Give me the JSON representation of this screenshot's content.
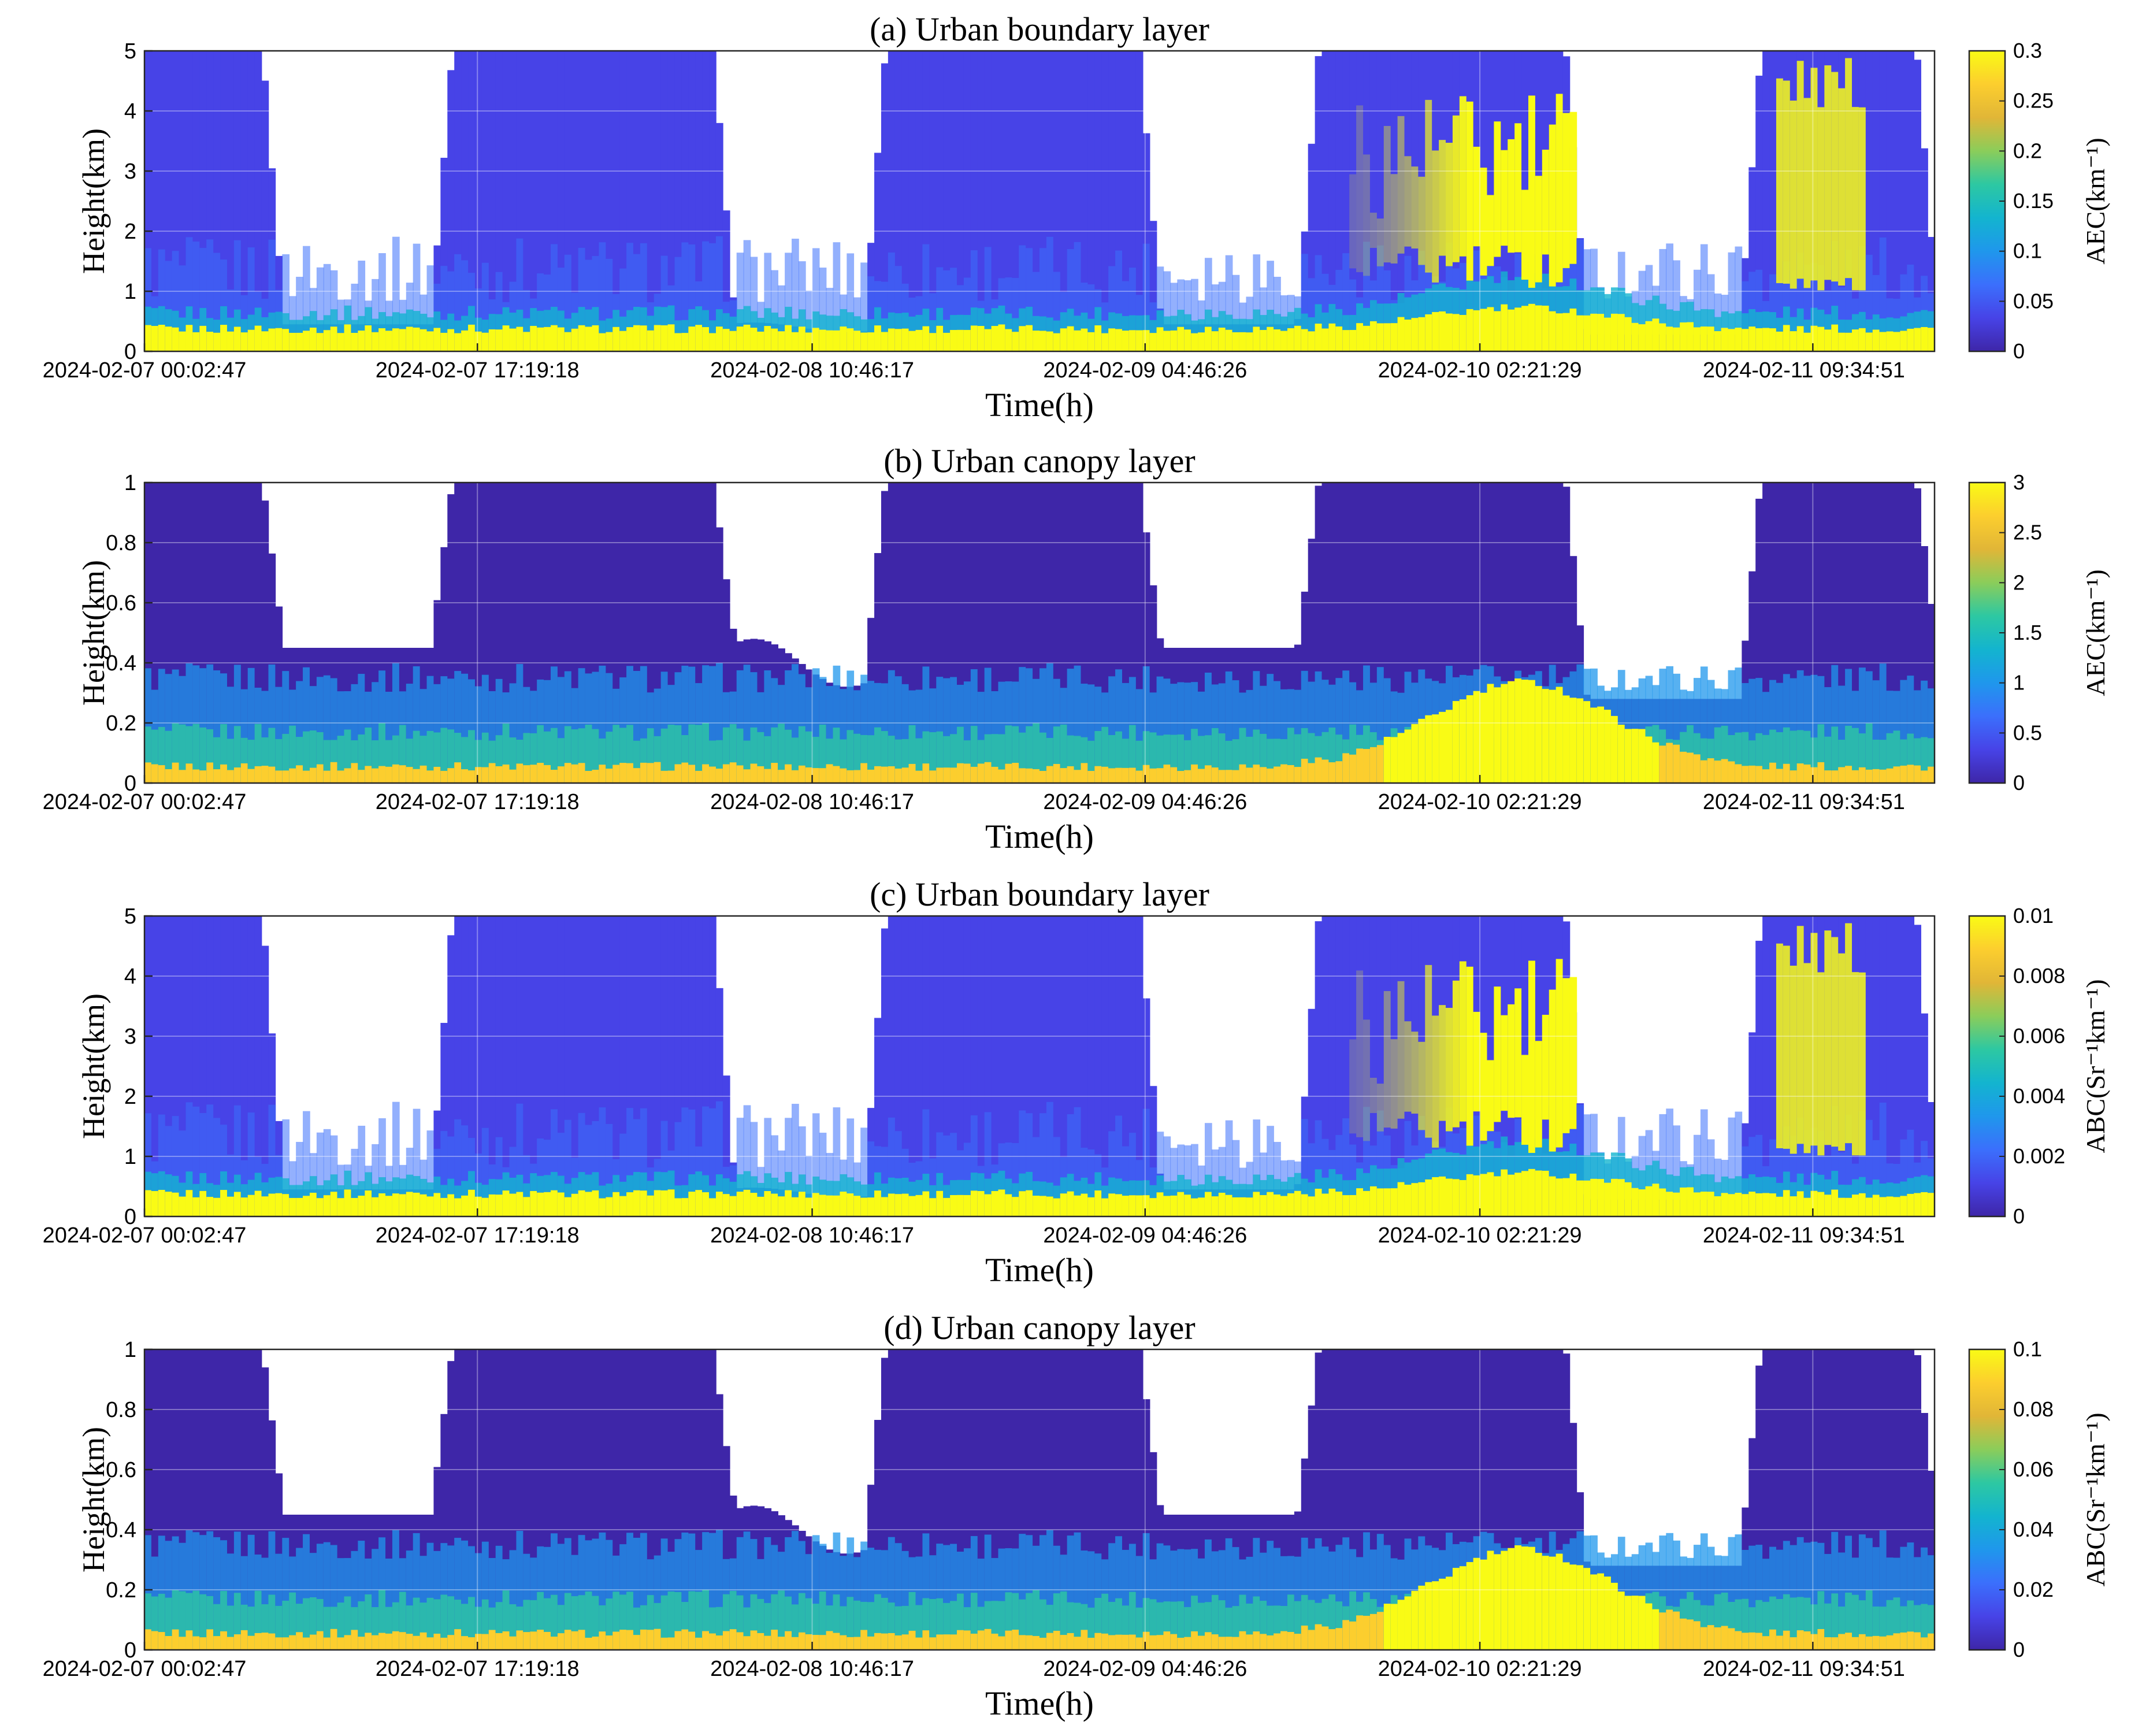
{
  "colormap": [
    "#3e26a8",
    "#4743e7",
    "#3b6ffc",
    "#1f97ec",
    "#13b4cf",
    "#2dc8a2",
    "#8bcd5a",
    "#e1b637",
    "#fcce2e",
    "#f9fb15"
  ],
  "chart_data": [
    {
      "type": "heatmap",
      "title": "(a) Urban boundary layer",
      "xlabel": "Time(h)",
      "ylabel": "Height(km)",
      "xticks": [
        "2024-02-07 00:02:47",
        "2024-02-07 17:19:18",
        "2024-02-08 10:46:17",
        "2024-02-09 04:46:26",
        "2024-02-10 02:21:29",
        "2024-02-11 09:34:51"
      ],
      "ylim": [
        0,
        5
      ],
      "yticks": [
        "0",
        "1",
        "2",
        "3",
        "4",
        "5"
      ],
      "colorbar": {
        "label": "AEC(km⁻¹)",
        "range": [
          0,
          0.3
        ],
        "ticks": [
          "0",
          "0.05",
          "0.1",
          "0.15",
          "0.2",
          "0.25",
          "0.3"
        ]
      }
    },
    {
      "type": "heatmap",
      "title": "(b) Urban canopy layer",
      "xlabel": "Time(h)",
      "ylabel": "Height(km)",
      "xticks": [
        "2024-02-07 00:02:47",
        "2024-02-07 17:19:18",
        "2024-02-08 10:46:17",
        "2024-02-09 04:46:26",
        "2024-02-10 02:21:29",
        "2024-02-11 09:34:51"
      ],
      "ylim": [
        0,
        1
      ],
      "yticks": [
        "0",
        "0.2",
        "0.4",
        "0.6",
        "0.8",
        "1"
      ],
      "colorbar": {
        "label": "AEC(km⁻¹)",
        "range": [
          0,
          3
        ],
        "ticks": [
          "0",
          "0.5",
          "1",
          "1.5",
          "2",
          "2.5",
          "3"
        ]
      }
    },
    {
      "type": "heatmap",
      "title": "(c) Urban boundary layer",
      "xlabel": "Time(h)",
      "ylabel": "Height(km)",
      "xticks": [
        "2024-02-07 00:02:47",
        "2024-02-07 17:19:18",
        "2024-02-08 10:46:17",
        "2024-02-09 04:46:26",
        "2024-02-10 02:21:29",
        "2024-02-11 09:34:51"
      ],
      "ylim": [
        0,
        5
      ],
      "yticks": [
        "0",
        "1",
        "2",
        "3",
        "4",
        "5"
      ],
      "colorbar": {
        "label": "ABC(Sr⁻¹km⁻¹)",
        "range": [
          0,
          0.01
        ],
        "ticks": [
          "0",
          "0.002",
          "0.004",
          "0.006",
          "0.008",
          "0.01"
        ]
      }
    },
    {
      "type": "heatmap",
      "title": "(d) Urban canopy layer",
      "xlabel": "Time(h)",
      "ylabel": "Height(km)",
      "xticks": [
        "2024-02-07 00:02:47",
        "2024-02-07 17:19:18",
        "2024-02-08 10:46:17",
        "2024-02-09 04:46:26",
        "2024-02-10 02:21:29",
        "2024-02-11 09:34:51"
      ],
      "ylim": [
        0,
        1
      ],
      "yticks": [
        "0",
        "0.2",
        "0.4",
        "0.6",
        "0.8",
        "1"
      ],
      "colorbar": {
        "label": "ABC(Sr⁻¹km⁻¹)",
        "range": [
          0,
          0.1
        ],
        "ticks": [
          "0",
          "0.02",
          "0.04",
          "0.06",
          "0.08",
          "0.1"
        ]
      }
    }
  ]
}
